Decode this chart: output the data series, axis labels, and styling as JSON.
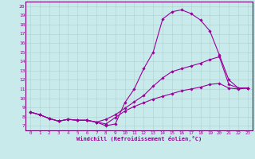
{
  "bg_color": "#c8eaea",
  "line_color": "#990099",
  "grid_color": "#aacccc",
  "axis_color": "#660066",
  "xlim": [
    -0.5,
    23.5
  ],
  "ylim": [
    6.5,
    20.5
  ],
  "xticks": [
    0,
    1,
    2,
    3,
    4,
    5,
    6,
    7,
    8,
    9,
    10,
    11,
    12,
    13,
    14,
    15,
    16,
    17,
    18,
    19,
    20,
    21,
    22,
    23
  ],
  "yticks": [
    7,
    8,
    9,
    10,
    11,
    12,
    13,
    14,
    15,
    16,
    17,
    18,
    19,
    20
  ],
  "line1_x": [
    0,
    1,
    2,
    3,
    4,
    5,
    6,
    7,
    8,
    9,
    10,
    11,
    12,
    13,
    14,
    15,
    16,
    17,
    18,
    19,
    20,
    21,
    22,
    23
  ],
  "line1_y": [
    8.5,
    8.2,
    7.8,
    7.5,
    7.7,
    7.6,
    7.6,
    7.4,
    7.0,
    7.2,
    9.5,
    11.0,
    13.2,
    15.0,
    18.6,
    19.4,
    19.6,
    19.2,
    18.5,
    17.3,
    14.7,
    12.0,
    11.1,
    11.1
  ],
  "line2_x": [
    0,
    1,
    2,
    3,
    4,
    5,
    6,
    7,
    8,
    9,
    10,
    11,
    12,
    13,
    14,
    15,
    16,
    17,
    18,
    19,
    20,
    21,
    22,
    23
  ],
  "line2_y": [
    8.5,
    8.2,
    7.8,
    7.5,
    7.7,
    7.6,
    7.6,
    7.4,
    7.7,
    8.2,
    8.9,
    9.6,
    10.3,
    11.3,
    12.2,
    12.9,
    13.2,
    13.5,
    13.8,
    14.2,
    14.5,
    11.5,
    11.1,
    11.1
  ],
  "line3_x": [
    0,
    1,
    2,
    3,
    4,
    5,
    6,
    7,
    8,
    9,
    10,
    11,
    12,
    13,
    14,
    15,
    16,
    17,
    18,
    19,
    20,
    21,
    22,
    23
  ],
  "line3_y": [
    8.5,
    8.2,
    7.8,
    7.5,
    7.7,
    7.6,
    7.6,
    7.4,
    7.2,
    7.9,
    8.6,
    9.1,
    9.5,
    9.9,
    10.2,
    10.5,
    10.8,
    11.0,
    11.2,
    11.5,
    11.6,
    11.1,
    11.0,
    11.1
  ],
  "xlabel": "Windchill (Refroidissement éolien,°C)",
  "marker": "D",
  "markersize": 1.8,
  "linewidth": 0.8
}
